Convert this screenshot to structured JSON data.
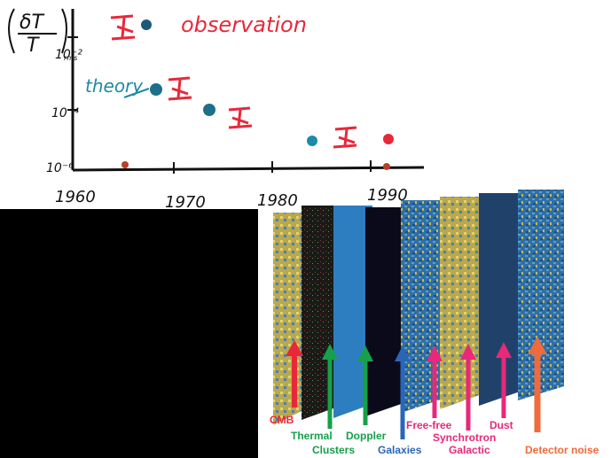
{
  "plot": {
    "y_axis_label": "(δT/T)rms",
    "ticks_y": [
      "10⁻²",
      "10⁻⁴",
      "10⁻⁶"
    ],
    "ticks_x": [
      "1960",
      "1970",
      "1980",
      "1990"
    ],
    "legend_observation": "observation",
    "legend_theory": "theory",
    "colors": {
      "observation": "#e8283a",
      "theory": "#1e8aa8",
      "axis": "#111111"
    }
  },
  "layers": {
    "labels": [
      {
        "text": "CMB",
        "color": "#e8283a"
      },
      {
        "text": "Thermal",
        "color": "#17a04a"
      },
      {
        "text": "Clusters",
        "color": "#17a04a"
      },
      {
        "text": "Doppler",
        "color": "#17a04a"
      },
      {
        "text": "Galaxies",
        "color": "#2a66b8"
      },
      {
        "text": "Free-free",
        "color": "#e8287a"
      },
      {
        "text": "Synchrotron",
        "color": "#e8287a"
      },
      {
        "text": "Galactic",
        "color": "#e8287a"
      },
      {
        "text": "Dust",
        "color": "#e8287a"
      },
      {
        "text": "Detector noise",
        "color": "#f06a3a"
      }
    ]
  }
}
